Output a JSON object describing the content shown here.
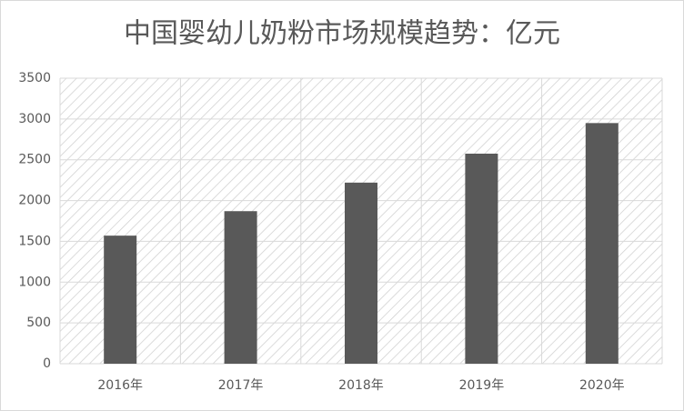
{
  "chart_data": {
    "type": "bar",
    "title": "中国婴幼儿奶粉市场规模趋势：亿元",
    "categories": [
      "2016年",
      "2017年",
      "2018年",
      "2019年",
      "2020年"
    ],
    "values": [
      1570,
      1870,
      2220,
      2575,
      2950
    ],
    "color": "#595959",
    "ylim": [
      0,
      3500
    ],
    "yticks": [
      0,
      500,
      1000,
      1500,
      2000,
      2500,
      3000,
      3500
    ],
    "grid": true
  }
}
